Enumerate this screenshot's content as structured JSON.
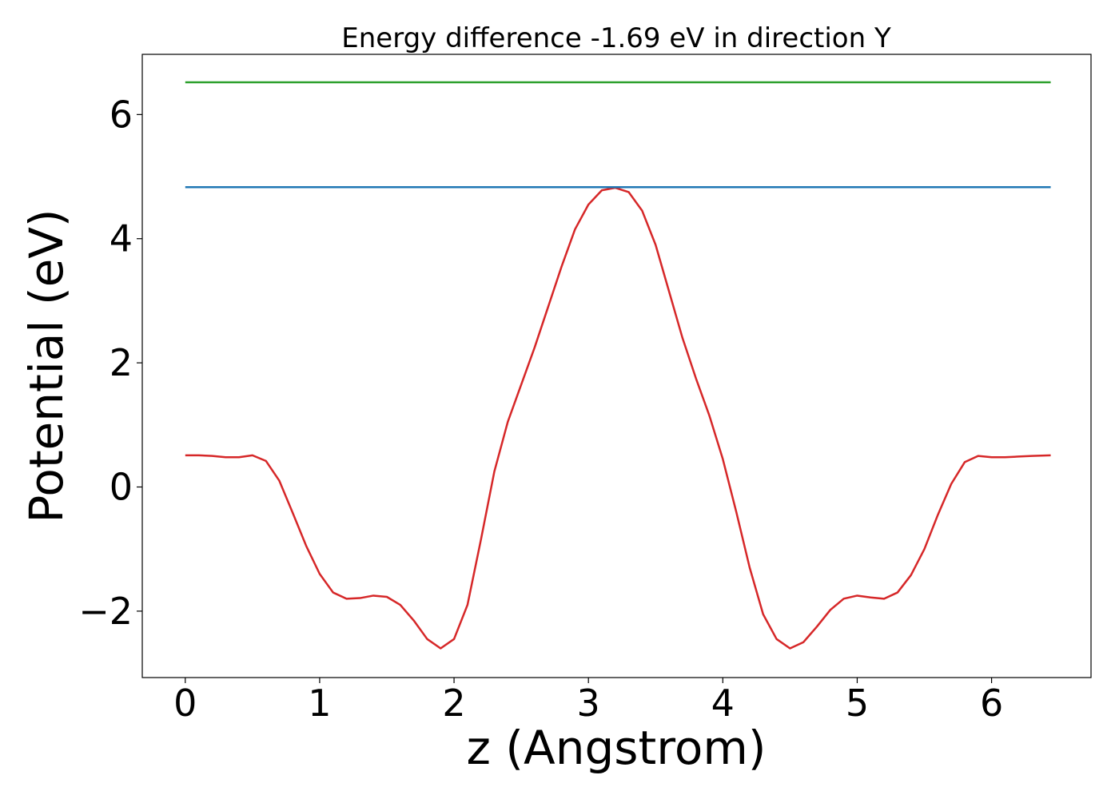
{
  "chart_data": {
    "type": "line",
    "title": "Energy difference -1.69 eV in direction Y",
    "xlabel": "z (Angstrom)",
    "ylabel": "Potential (eV)",
    "xlim": [
      -0.32,
      6.74
    ],
    "ylim": [
      -3.07,
      6.97
    ],
    "xticks": [
      0,
      1,
      2,
      3,
      4,
      5,
      6
    ],
    "xtick_labels": [
      "0",
      "1",
      "2",
      "3",
      "4",
      "5",
      "6"
    ],
    "yticks": [
      -2,
      0,
      2,
      4,
      6
    ],
    "ytick_labels": [
      "−2",
      "0",
      "2",
      "4",
      "6"
    ],
    "grid": false,
    "legend": "none",
    "series": [
      {
        "color": "#d62728",
        "x": [
          0,
          0.1,
          0.2,
          0.3,
          0.4,
          0.5,
          0.6,
          0.7,
          0.8,
          0.9,
          1.0,
          1.1,
          1.2,
          1.3,
          1.4,
          1.5,
          1.6,
          1.7,
          1.8,
          1.9,
          2.0,
          2.1,
          2.2,
          2.3,
          2.4,
          2.5,
          2.6,
          2.7,
          2.8,
          2.9,
          3.0,
          3.1,
          3.2,
          3.3,
          3.4,
          3.5,
          3.6,
          3.7,
          3.8,
          3.9,
          4.0,
          4.1,
          4.2,
          4.3,
          4.4,
          4.5,
          4.6,
          4.7,
          4.8,
          4.9,
          5.0,
          5.1,
          5.2,
          5.3,
          5.4,
          5.5,
          5.6,
          5.7,
          5.8,
          5.9,
          6.0,
          6.1,
          6.2,
          6.3,
          6.44
        ],
        "y": [
          0.51,
          0.51,
          0.5,
          0.48,
          0.48,
          0.51,
          0.42,
          0.1,
          -0.42,
          -0.95,
          -1.4,
          -1.7,
          -1.8,
          -1.79,
          -1.75,
          -1.77,
          -1.9,
          -2.15,
          -2.45,
          -2.6,
          -2.45,
          -1.9,
          -0.85,
          0.25,
          1.05,
          1.65,
          2.25,
          2.9,
          3.55,
          4.15,
          4.55,
          4.78,
          4.82,
          4.75,
          4.45,
          3.9,
          3.15,
          2.4,
          1.75,
          1.15,
          0.45,
          -0.4,
          -1.3,
          -2.05,
          -2.45,
          -2.6,
          -2.5,
          -2.25,
          -1.98,
          -1.8,
          -1.75,
          -1.78,
          -1.8,
          -1.7,
          -1.42,
          -1.0,
          -0.45,
          0.05,
          0.4,
          0.5,
          0.48,
          0.48,
          0.49,
          0.5,
          0.51
        ]
      },
      {
        "color": "#1f77b4",
        "x": [
          0,
          6.44
        ],
        "y": [
          4.83,
          4.83
        ]
      },
      {
        "color": "#2ca02c",
        "x": [
          0,
          6.44
        ],
        "y": [
          6.52,
          6.52
        ]
      }
    ]
  }
}
